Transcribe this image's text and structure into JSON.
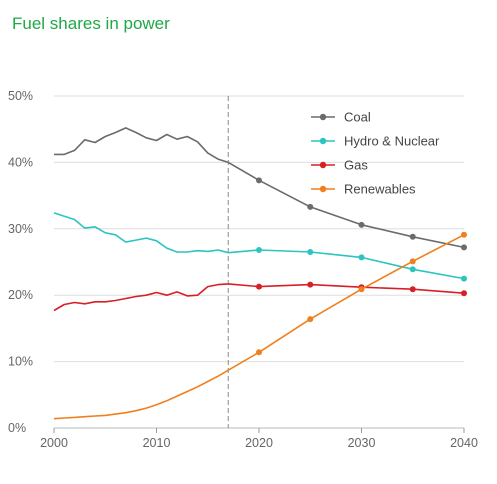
{
  "chart_data": {
    "type": "line",
    "title": "Fuel shares in power",
    "xlabel": "",
    "ylabel": "",
    "xlim": [
      2000,
      2040
    ],
    "ylim": [
      0,
      50
    ],
    "x_ticks": [
      "2000",
      "2010",
      "2020",
      "2030",
      "2040"
    ],
    "y_ticks": [
      "0%",
      "10%",
      "20%",
      "30%",
      "40%",
      "50%"
    ],
    "grid": "horizontal",
    "legend": "top-right",
    "reference_line_x": 2017,
    "series": [
      {
        "name": "Coal",
        "color": "#6b6b6b",
        "history_x": [
          2000,
          2001,
          2002,
          2003,
          2004,
          2005,
          2006,
          2007,
          2008,
          2009,
          2010,
          2011,
          2012,
          2013,
          2014,
          2015,
          2016,
          2017
        ],
        "history_y": [
          41.2,
          41.2,
          41.8,
          43.4,
          43.0,
          43.9,
          44.5,
          45.2,
          44.5,
          43.7,
          43.3,
          44.2,
          43.5,
          43.9,
          43.1,
          41.4,
          40.5,
          40.0
        ],
        "x": [
          2017,
          2020,
          2025,
          2030,
          2035,
          2040
        ],
        "y": [
          40.0,
          37.3,
          33.3,
          30.6,
          28.8,
          27.2
        ]
      },
      {
        "name": "Hydro & Nuclear",
        "color": "#2cc4c0",
        "history_x": [
          2000,
          2001,
          2002,
          2003,
          2004,
          2005,
          2006,
          2007,
          2008,
          2009,
          2010,
          2011,
          2012,
          2013,
          2014,
          2015,
          2016,
          2017
        ],
        "history_y": [
          32.4,
          31.9,
          31.4,
          30.1,
          30.3,
          29.4,
          29.1,
          28.0,
          28.3,
          28.6,
          28.2,
          27.1,
          26.5,
          26.5,
          26.7,
          26.6,
          26.8,
          26.4
        ],
        "x": [
          2017,
          2020,
          2025,
          2030,
          2035,
          2040
        ],
        "y": [
          26.4,
          26.8,
          26.5,
          25.7,
          23.9,
          22.5
        ]
      },
      {
        "name": "Gas",
        "color": "#d91f26",
        "history_x": [
          2000,
          2001,
          2002,
          2003,
          2004,
          2005,
          2006,
          2007,
          2008,
          2009,
          2010,
          2011,
          2012,
          2013,
          2014,
          2015,
          2016,
          2017
        ],
        "history_y": [
          17.7,
          18.6,
          18.9,
          18.7,
          19.0,
          19.0,
          19.2,
          19.5,
          19.8,
          20.0,
          20.4,
          20.0,
          20.5,
          19.9,
          20.0,
          21.3,
          21.6,
          21.7
        ],
        "x": [
          2017,
          2020,
          2025,
          2030,
          2035,
          2040
        ],
        "y": [
          21.7,
          21.3,
          21.6,
          21.2,
          20.9,
          20.3
        ]
      },
      {
        "name": "Renewables",
        "color": "#f07f1e",
        "history_x": [
          2000,
          2001,
          2002,
          2003,
          2004,
          2005,
          2006,
          2007,
          2008,
          2009,
          2010,
          2011,
          2012,
          2013,
          2014,
          2015,
          2016,
          2017
        ],
        "history_y": [
          1.4,
          1.5,
          1.6,
          1.7,
          1.8,
          1.9,
          2.1,
          2.3,
          2.6,
          3.0,
          3.5,
          4.1,
          4.8,
          5.5,
          6.2,
          7.0,
          7.8,
          8.7
        ],
        "x": [
          2017,
          2020,
          2025,
          2030,
          2035,
          2040
        ],
        "y": [
          8.7,
          11.4,
          16.4,
          20.9,
          25.1,
          29.1
        ]
      }
    ]
  }
}
